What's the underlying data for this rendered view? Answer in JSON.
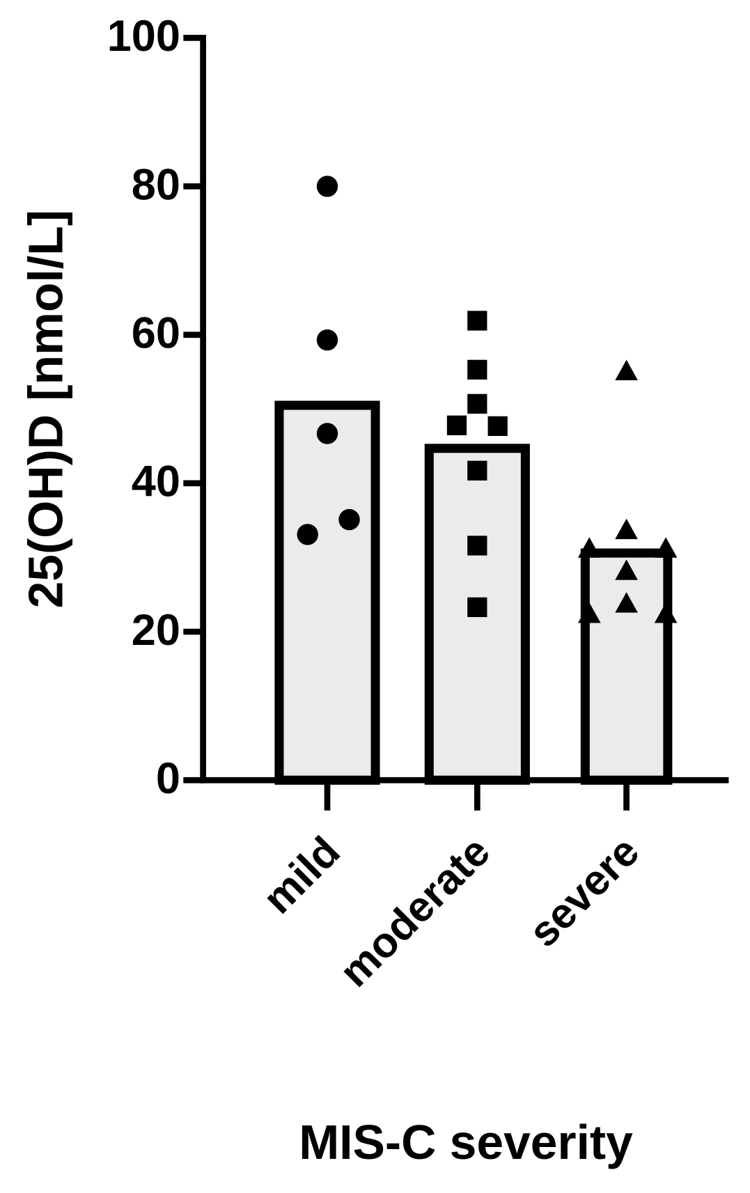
{
  "chart_data": {
    "type": "bar",
    "x_label": "MIS-C severity",
    "y_label": "25(OH)D [nmol/L]",
    "categories": [
      "mild",
      "moderate",
      "severe"
    ],
    "values": [
      50.5,
      44.7,
      30.6
    ],
    "points": [
      [
        80,
        59.3,
        46.7,
        35.1,
        33.1
      ],
      [
        61.9,
        55.3,
        50.7,
        47.8,
        47.7,
        41.7,
        31.6,
        23.3
      ],
      [
        55.1,
        33.7,
        31.2,
        31.2,
        28.2,
        23.8,
        22.4,
        22.4
      ]
    ],
    "markers": [
      "circle",
      "square",
      "triangle"
    ],
    "color": "#ebebeb",
    "ylim": [
      0,
      100
    ],
    "yticks": [
      0,
      20,
      40,
      60,
      80,
      100
    ]
  }
}
